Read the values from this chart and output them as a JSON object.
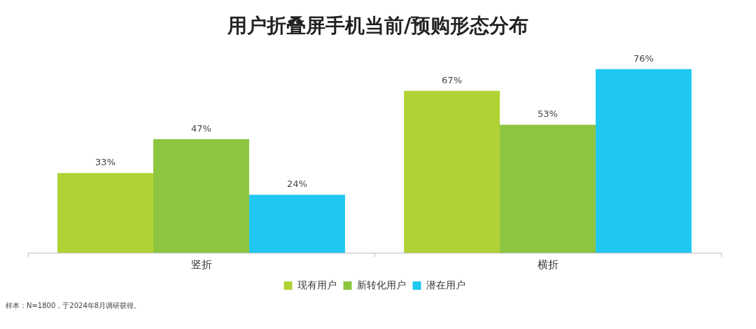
{
  "chart_data": {
    "type": "bar",
    "title": "用户折叠屏手机当前/预购形态分布",
    "categories": [
      "竖折",
      "横折"
    ],
    "series": [
      {
        "name": "现有用户",
        "color": "#b1d234",
        "values": [
          33,
          67
        ],
        "value_labels": [
          "33%",
          "67%"
        ]
      },
      {
        "name": "新转化用户",
        "color": "#8cc540",
        "values": [
          47,
          53
        ],
        "value_labels": [
          "47%",
          "53%"
        ]
      },
      {
        "name": "潜在用户",
        "color": "#1fc8f1",
        "values": [
          24,
          76
        ],
        "value_labels": [
          "24%",
          "76%"
        ]
      }
    ],
    "legend": "bottom",
    "grid": false,
    "annotations": [
      "样本：N=1800，于2024年8月调研获得。"
    ]
  }
}
